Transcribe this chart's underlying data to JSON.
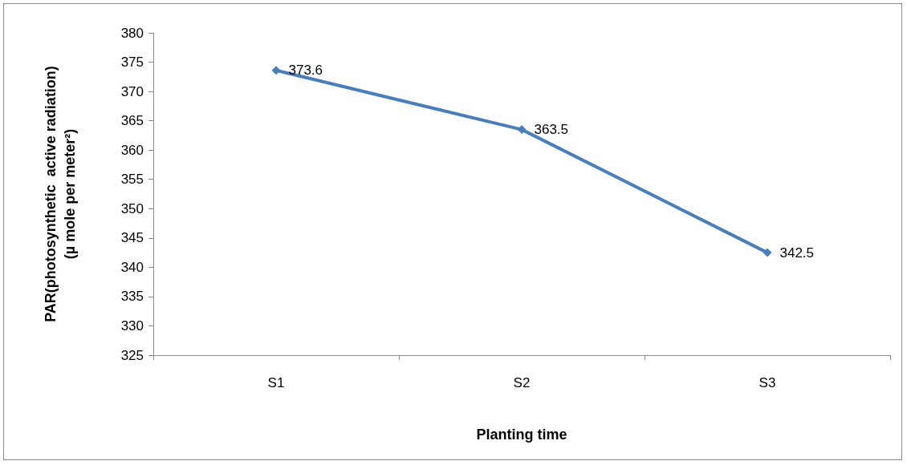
{
  "chart_data": {
    "type": "line",
    "xlabel": "Planting time",
    "ylabel": "PAR(photosynthetic  active radiation)\n(µ mole per meter²)",
    "categories": [
      "S1",
      "S2",
      "S3"
    ],
    "series": [
      {
        "color": "#4a7ebb",
        "values": [
          373.6,
          363.5,
          342.5
        ]
      }
    ],
    "ylim": [
      325,
      380
    ],
    "yticks": [
      325,
      330,
      335,
      340,
      345,
      350,
      355,
      360,
      365,
      370,
      375,
      380
    ],
    "grid": false,
    "legend": false,
    "marker": "diamond",
    "line_style": "solid",
    "data_labels": true
  }
}
